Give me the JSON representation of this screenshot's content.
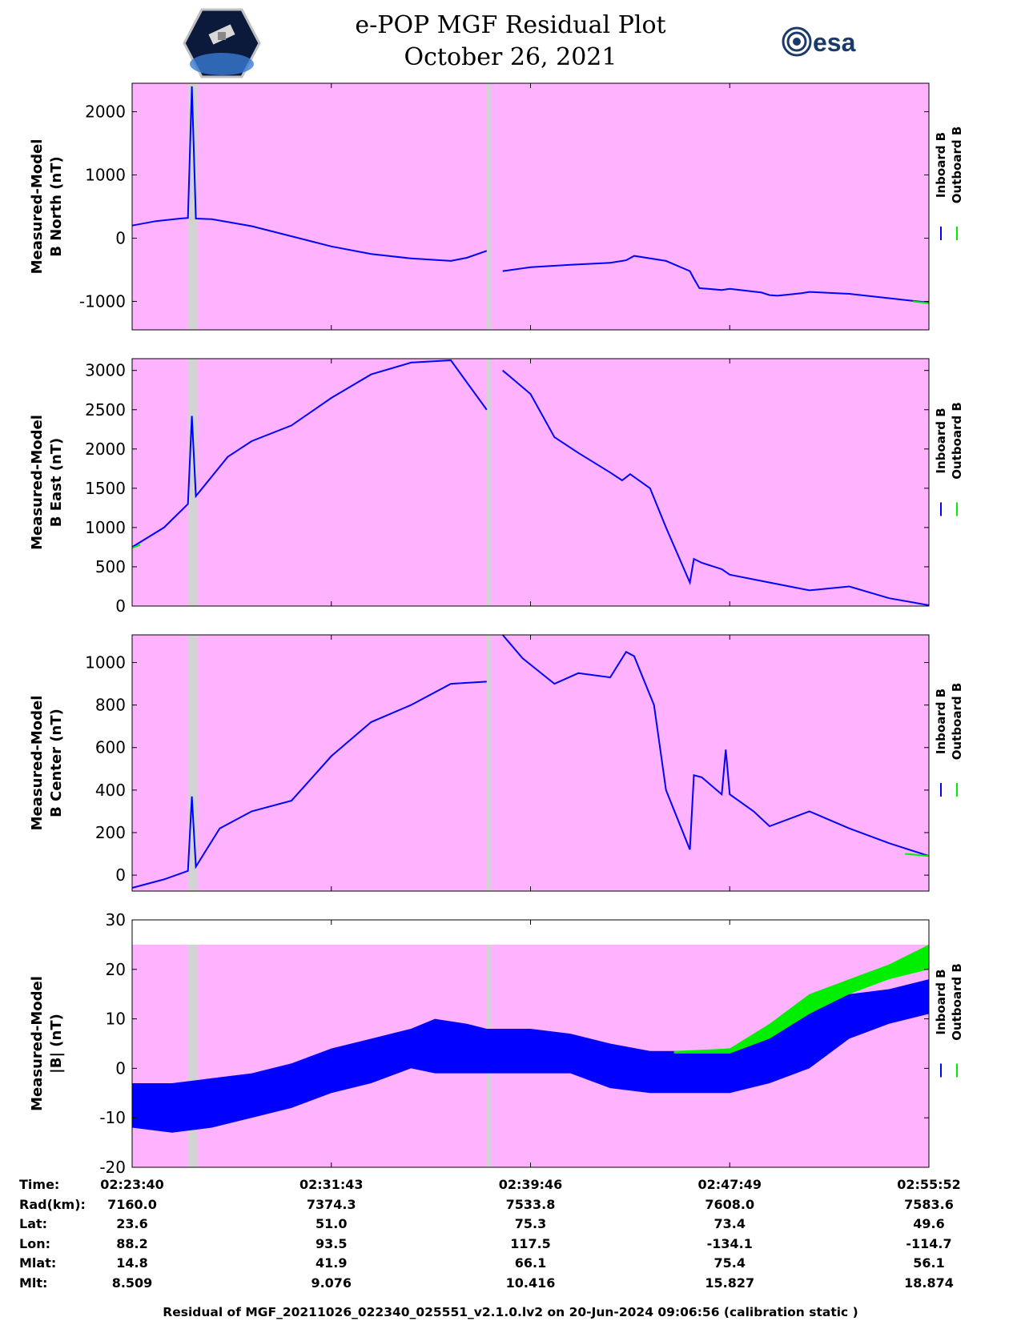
{
  "header": {
    "title": "e-POP MGF Residual Plot",
    "date": "October 26, 2021",
    "left_logo": "cassiope-satellite-logo",
    "right_logo": "esa-logo",
    "right_logo_text": "esa"
  },
  "chart_data": [
    {
      "type": "line",
      "ylabel": [
        "Measured-Model",
        "B North (nT)"
      ],
      "ylim": [
        -1450,
        2450
      ],
      "yticks": [
        2000,
        1000,
        0,
        -1000
      ],
      "ytick_labels": [
        "2000",
        "1000",
        "0",
        "-1000"
      ],
      "legend": [
        "Inboard B",
        "Outboard B"
      ],
      "series": [
        {
          "name": "Inboard B",
          "color": "#0000ff",
          "x": [
            0,
            0.03,
            0.06,
            0.07,
            0.075,
            0.08,
            0.1,
            0.15,
            0.2,
            0.25,
            0.3,
            0.35,
            0.4,
            0.42,
            0.445,
            0.455,
            0.465,
            0.5,
            0.55,
            0.6,
            0.62,
            0.63,
            0.67,
            0.7,
            0.705,
            0.712,
            0.74,
            0.75,
            0.79,
            0.8,
            0.81,
            0.84,
            0.85,
            0.9,
            0.95,
            1.0
          ],
          "y": [
            200,
            270,
            310,
            320,
            2400,
            310,
            300,
            190,
            30,
            -130,
            -250,
            -320,
            -360,
            -310,
            -200,
            null,
            -520,
            -460,
            -420,
            -390,
            -350,
            -280,
            -360,
            -520,
            -640,
            -790,
            -820,
            -800,
            -860,
            -900,
            -910,
            -870,
            -850,
            -880,
            -950,
            -1020
          ]
        },
        {
          "name": "Outboard B",
          "color": "#00ee00",
          "x": [
            0.98,
            1.0
          ],
          "y": [
            -1000,
            -1030
          ]
        }
      ],
      "gaps": [
        [
          0.07,
          0.082
        ],
        [
          0.445,
          0.45
        ]
      ]
    },
    {
      "type": "line",
      "ylabel": [
        "Measured-Model",
        "B East (nT)"
      ],
      "ylim": [
        0,
        3150
      ],
      "yticks": [
        3000,
        2500,
        2000,
        1500,
        1000,
        500,
        0
      ],
      "ytick_labels": [
        "3000",
        "2500",
        "2000",
        "1500",
        "1000",
        "500",
        "0"
      ],
      "legend": [
        "Inboard B",
        "Outboard B"
      ],
      "series": [
        {
          "name": "Inboard B",
          "color": "#0000ff",
          "x": [
            0,
            0.04,
            0.07,
            0.075,
            0.08,
            0.12,
            0.15,
            0.2,
            0.25,
            0.3,
            0.35,
            0.4,
            0.445,
            0.455,
            0.465,
            0.5,
            0.53,
            0.56,
            0.6,
            0.615,
            0.625,
            0.65,
            0.67,
            0.7,
            0.705,
            0.715,
            0.74,
            0.75,
            0.8,
            0.85,
            0.9,
            0.95,
            1.0
          ],
          "y": [
            750,
            1000,
            1300,
            2420,
            1400,
            1900,
            2100,
            2300,
            2650,
            2950,
            3100,
            3130,
            2500,
            null,
            3000,
            2700,
            2150,
            1950,
            1700,
            1600,
            1680,
            1500,
            1000,
            300,
            600,
            550,
            470,
            400,
            300,
            200,
            250,
            100,
            10
          ]
        },
        {
          "name": "Outboard B",
          "color": "#00ee00",
          "x": [
            0,
            0.01
          ],
          "y": [
            740,
            780
          ]
        }
      ],
      "gaps": [
        [
          0.07,
          0.082
        ],
        [
          0.445,
          0.45
        ]
      ]
    },
    {
      "type": "line",
      "ylabel": [
        "Measured-Model",
        "B Center (nT)"
      ],
      "ylim": [
        -75,
        1130
      ],
      "yticks": [
        1000,
        800,
        600,
        400,
        200,
        0
      ],
      "ytick_labels": [
        "1000",
        "800",
        "600",
        "400",
        "200",
        "0"
      ],
      "legend": [
        "Inboard B",
        "Outboard B"
      ],
      "series": [
        {
          "name": "Inboard B",
          "color": "#0000ff",
          "x": [
            0,
            0.04,
            0.07,
            0.075,
            0.08,
            0.11,
            0.15,
            0.2,
            0.25,
            0.3,
            0.35,
            0.4,
            0.445,
            0.455,
            0.465,
            0.49,
            0.53,
            0.56,
            0.6,
            0.62,
            0.63,
            0.655,
            0.67,
            0.7,
            0.705,
            0.715,
            0.74,
            0.745,
            0.75,
            0.78,
            0.8,
            0.85,
            0.9,
            0.95,
            1.0
          ],
          "y": [
            -60,
            -20,
            20,
            370,
            40,
            220,
            300,
            350,
            560,
            720,
            800,
            900,
            910,
            null,
            1130,
            1020,
            900,
            950,
            930,
            1050,
            1030,
            800,
            400,
            120,
            470,
            460,
            380,
            590,
            380,
            300,
            230,
            300,
            220,
            150,
            90
          ]
        },
        {
          "name": "Outboard B",
          "color": "#00ee00",
          "x": [
            0.97,
            1.0
          ],
          "y": [
            100,
            90
          ]
        }
      ],
      "gaps": [
        [
          0.07,
          0.082
        ],
        [
          0.445,
          0.45
        ]
      ]
    },
    {
      "type": "area",
      "ylabel": [
        "Measured-Model",
        "|B| (nT)"
      ],
      "ylim": [
        -20,
        30
      ],
      "yticks": [
        30,
        20,
        10,
        0,
        -10,
        -20
      ],
      "ytick_labels": [
        "30",
        "20",
        "10",
        "0",
        "-10",
        "-20"
      ],
      "legend": [
        "Inboard B",
        "Outboard B"
      ],
      "series": [
        {
          "name": "Inboard B",
          "color": "#0000ff",
          "x": [
            0,
            0.05,
            0.1,
            0.15,
            0.2,
            0.25,
            0.3,
            0.35,
            0.38,
            0.42,
            0.445,
            0.455,
            0.5,
            0.55,
            0.6,
            0.65,
            0.7,
            0.75,
            0.8,
            0.85,
            0.9,
            0.95,
            1.0
          ],
          "upper": [
            -3,
            -3,
            -2,
            -1,
            1,
            4,
            6,
            8,
            10,
            9,
            8,
            8,
            8,
            7,
            5,
            3.5,
            3.5,
            4,
            8,
            12,
            15,
            16,
            18
          ],
          "lower": [
            -12,
            -13,
            -12,
            -10,
            -8,
            -5,
            -3,
            0,
            -1,
            -1,
            -1,
            -1,
            -1,
            -1,
            -4,
            -5,
            -5,
            -5,
            -3,
            0,
            6,
            9,
            11
          ]
        },
        {
          "name": "Outboard B",
          "color": "#00ee00",
          "x": [
            0.68,
            0.75,
            0.8,
            0.85,
            0.9,
            0.95,
            1.0
          ],
          "upper": [
            3.5,
            4,
            9,
            15,
            18,
            21,
            25
          ],
          "lower": [
            3,
            3,
            6,
            11,
            15,
            18,
            20
          ]
        }
      ],
      "shade_top": 25,
      "gaps": [
        [
          0.07,
          0.082
        ],
        [
          0.445,
          0.45
        ]
      ]
    }
  ],
  "xaxis": {
    "tick_labels": [
      "02:23:40",
      "02:31:43",
      "02:39:46",
      "02:47:49",
      "02:55:52"
    ],
    "tick_positions": [
      0,
      0.25,
      0.5,
      0.75,
      1.0
    ]
  },
  "info_table": {
    "rows": [
      {
        "label": "Time:",
        "values": [
          "02:23:40",
          "02:31:43",
          "02:39:46",
          "02:47:49",
          "02:55:52"
        ]
      },
      {
        "label": "Rad(km):",
        "values": [
          "7160.0",
          "7374.3",
          "7533.8",
          "7608.0",
          "7583.6"
        ]
      },
      {
        "label": "Lat:",
        "values": [
          "23.6",
          "51.0",
          "75.3",
          "73.4",
          "49.6"
        ]
      },
      {
        "label": "Lon:",
        "values": [
          "88.2",
          "93.5",
          "117.5",
          "-134.1",
          "-114.7"
        ]
      },
      {
        "label": "Mlat:",
        "values": [
          "14.8",
          "41.9",
          "66.1",
          "75.4",
          "56.1"
        ]
      },
      {
        "label": "Mlt:",
        "values": [
          "8.509",
          "9.076",
          "10.416",
          "15.827",
          "18.874"
        ]
      }
    ]
  },
  "footer": "Residual of MGF_20211026_022340_025551_v2.1.0.lv2 on 20-Jun-2024 09:06:56 (calibration static )",
  "colors": {
    "background_band": "#ffb3ff",
    "gap_band": "#d3d3d3",
    "inboard": "#0000ff",
    "outboard": "#00ee00"
  }
}
